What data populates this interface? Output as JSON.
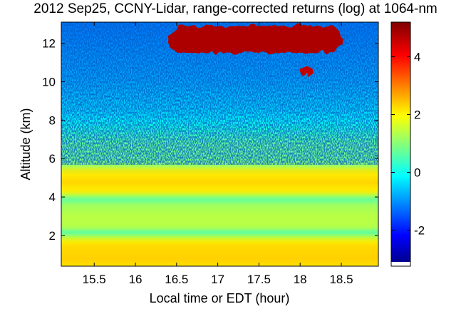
{
  "chart_data": {
    "type": "heatmap",
    "title": "2012 Sep25, CCNY-Lidar, range-corrected returns (log) at 1064-nm",
    "xlabel": "Local time or EDT (hour)",
    "ylabel": "Altitude (km)",
    "xlim": [
      15.1,
      18.95
    ],
    "ylim": [
      0.4,
      13.1
    ],
    "x_ticks": [
      15.5,
      16,
      16.5,
      17,
      17.5,
      18,
      18.5
    ],
    "x_tick_labels": [
      "15.5",
      "16",
      "16.5",
      "17",
      "17.5",
      "18",
      "18.5"
    ],
    "y_ticks": [
      2,
      4,
      6,
      8,
      10,
      12
    ],
    "y_tick_labels": [
      "2",
      "4",
      "6",
      "8",
      "10",
      "12"
    ],
    "colorbar": {
      "colormap": "jet",
      "range": [
        -3.1,
        5.2
      ],
      "ticks": [
        -2,
        0,
        2,
        4
      ],
      "tick_labels": [
        "-2",
        "0",
        "2",
        "4"
      ]
    },
    "features": [
      {
        "name": "cirrus",
        "x": [
          16.4,
          18.5
        ],
        "y": [
          11.5,
          12.9
        ],
        "value": 4.8
      },
      {
        "name": "cirrus",
        "x": [
          18.0,
          18.15
        ],
        "y": [
          10.3,
          10.8
        ],
        "value": 4.6
      },
      {
        "name": "aerosol layer",
        "x": [
          15.1,
          18.95
        ],
        "y": [
          4.2,
          5.5
        ],
        "value": 2.3
      },
      {
        "name": "aerosol layer",
        "x": [
          15.1,
          18.95
        ],
        "y": [
          2.3,
          3.7
        ],
        "value": 1.5
      },
      {
        "name": "boundary layer",
        "x": [
          15.1,
          18.95
        ],
        "y": [
          0.4,
          1.8
        ],
        "value": 2.3
      }
    ]
  },
  "colors": {
    "lowest": "#00008f",
    "cyan": "#00ffff",
    "yellow": "#ffff00",
    "highest": "#800000"
  }
}
